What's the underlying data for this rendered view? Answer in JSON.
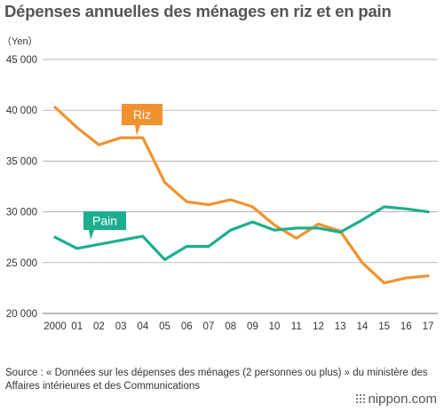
{
  "title": "Dépenses annuelles des ménages en riz et en pain",
  "source": "Source : « Données sur les dépenses des ménages (2 personnes ou plus) » du ministère des Affaires intérieures et des Communications",
  "logo": "nippon.com",
  "chart_data": {
    "type": "line",
    "title": "Dépenses annuelles des ménages en riz et en pain",
    "ylabel": "（Yen）",
    "xlabel": "",
    "ylim": [
      20000,
      45000
    ],
    "yticks": [
      20000,
      25000,
      30000,
      35000,
      40000,
      45000
    ],
    "ytick_labels": [
      "20 000",
      "25 000",
      "30 000",
      "35 000",
      "40 000",
      "45 000"
    ],
    "categories": [
      "2000",
      "01",
      "02",
      "03",
      "04",
      "05",
      "06",
      "07",
      "08",
      "09",
      "10",
      "11",
      "12",
      "13",
      "14",
      "15",
      "16",
      "17"
    ],
    "grid": "horizontal",
    "series": [
      {
        "name": "Riz",
        "color": "#f0922e",
        "values": [
          40300,
          38300,
          36600,
          37300,
          37300,
          32900,
          31000,
          30700,
          31200,
          30500,
          28700,
          27400,
          28800,
          28100,
          25000,
          23000,
          23500,
          23700
        ]
      },
      {
        "name": "Pain",
        "color": "#1dae8e",
        "values": [
          27500,
          26400,
          26800,
          27200,
          27600,
          25300,
          26600,
          26600,
          28200,
          29000,
          28200,
          28400,
          28400,
          28000,
          29200,
          30500,
          30300,
          30000
        ]
      }
    ]
  }
}
